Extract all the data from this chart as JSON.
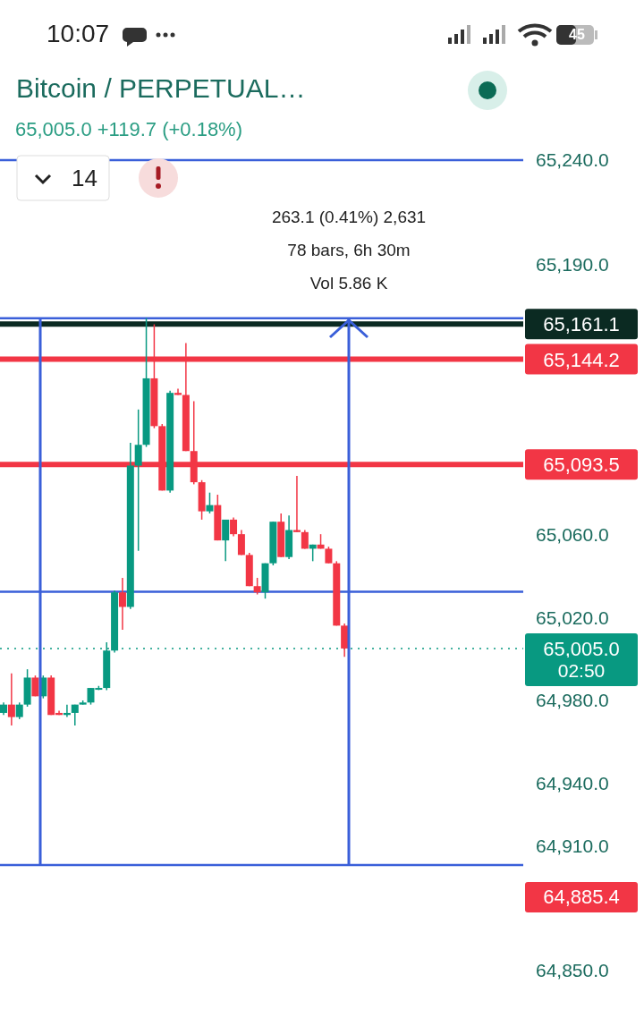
{
  "chart_data": {
    "type": "candlestick",
    "title": "Bitcoin / PERPETUAL…",
    "subtitle": "65,005.0 +119.7 (+0.18%)",
    "categories": [
      null,
      null,
      null,
      null,
      null,
      null,
      null,
      null,
      null,
      null,
      null,
      null,
      null,
      null,
      null,
      null,
      null,
      null,
      null,
      null,
      null,
      null,
      null,
      null,
      null,
      null,
      null,
      null,
      null,
      null,
      null,
      null,
      null,
      null,
      null,
      null,
      null,
      null,
      null,
      null,
      null,
      null,
      null,
      null,
      null,
      null,
      null,
      null,
      null,
      null,
      null,
      null,
      null,
      null,
      null,
      null,
      null,
      null,
      null,
      null,
      null,
      null,
      null,
      null,
      null,
      null
    ],
    "ohlc": [
      [
        64974,
        64979,
        64973,
        64978
      ],
      [
        64978,
        64993,
        64968,
        64972
      ],
      [
        64972,
        64979,
        64971,
        64978
      ],
      [
        64978,
        64995,
        64977,
        64991
      ],
      [
        64991,
        64992,
        64982,
        64982
      ],
      [
        64982,
        64992,
        64981,
        64991
      ],
      [
        64991,
        64992,
        64973,
        64973
      ],
      [
        64974,
        64975,
        64973,
        64973
      ],
      [
        64973,
        64978,
        64972,
        64974
      ],
      [
        64974,
        64978,
        64968,
        64978
      ],
      [
        64978,
        64980,
        64978,
        64979
      ],
      [
        64979,
        64986,
        64978,
        64986
      ],
      [
        64986,
        64987,
        64985,
        64986
      ],
      [
        64986,
        65008,
        64985,
        65004
      ],
      [
        65004,
        65033,
        65003,
        65032
      ],
      [
        65032,
        65039,
        65014,
        65025
      ],
      [
        65025,
        65104,
        65024,
        65093
      ],
      [
        65093,
        65120,
        65052,
        65103
      ],
      [
        65103,
        65164,
        65102,
        65135
      ],
      [
        65135,
        65161,
        65111,
        65112
      ],
      [
        65112,
        65113,
        65081,
        65081
      ],
      [
        65081,
        65129,
        65080,
        65128
      ],
      [
        65128,
        65130,
        65127,
        65127
      ],
      [
        65127,
        65152,
        65100,
        65100
      ],
      [
        65100,
        65124,
        65084,
        65085
      ],
      [
        65085,
        65086,
        65067,
        65071
      ],
      [
        65071,
        65080,
        65070,
        65074
      ],
      [
        65074,
        65079,
        65057,
        65057
      ],
      [
        65057,
        65067,
        65047,
        65067
      ],
      [
        65067,
        65068,
        65059,
        65060
      ],
      [
        65060,
        65062,
        65050,
        65050
      ],
      [
        65050,
        65051,
        65035,
        65035
      ],
      [
        65035,
        65039,
        65031,
        65032
      ],
      [
        65032,
        65046,
        65029,
        65046
      ],
      [
        65046,
        65066,
        65045,
        65066
      ],
      [
        65066,
        65070,
        65049,
        65049
      ],
      [
        65049,
        65069,
        65048,
        65062
      ],
      [
        65062,
        65088,
        65061,
        65061
      ],
      [
        65061,
        65062,
        65053,
        65053
      ],
      [
        65053,
        65055,
        65047,
        65055
      ],
      [
        65055,
        65060,
        65053,
        65053
      ],
      [
        65053,
        65054,
        65046,
        65046
      ],
      [
        65046,
        65047,
        65016,
        65016
      ],
      [
        65016,
        65017,
        65001,
        65005
      ],
      null,
      null,
      null,
      null,
      null,
      null,
      null,
      null,
      null,
      null,
      null,
      null,
      null,
      null,
      null,
      null,
      null,
      null,
      null,
      null,
      null,
      null
    ],
    "colors": [
      "#089981",
      "#f23645",
      "#089981",
      "#089981",
      "#f23645",
      "#089981",
      "#f23645",
      "#f23645",
      "#089981",
      "#089981",
      "#089981",
      "#089981",
      "#089981",
      "#089981",
      "#089981",
      "#f23645",
      "#089981",
      "#089981",
      "#089981",
      "#f23645",
      "#f23645",
      "#089981",
      "#f23645",
      "#f23645",
      "#f23645",
      "#f23645",
      "#089981",
      "#f23645",
      "#089981",
      "#f23645",
      "#f23645",
      "#f23645",
      "#f23645",
      "#089981",
      "#089981",
      "#f23645",
      "#089981",
      "#f23645",
      "#f23645",
      "#089981",
      "#f23645",
      "#f23645",
      "#f23645",
      "#f23645",
      null,
      null,
      null,
      null,
      null,
      null,
      null,
      null,
      null,
      null,
      null,
      null,
      null,
      null,
      null,
      null,
      null,
      null,
      null,
      null,
      null,
      null
    ],
    "ylim": [
      64850,
      65240
    ],
    "yticks": [
      {
        "value": 65240,
        "label": "65,240.0"
      },
      {
        "value": 65190,
        "label": "65,190.0"
      },
      {
        "value": 65060,
        "label": "65,060.0"
      },
      {
        "value": 65020,
        "label": "65,020.0"
      },
      {
        "value": 64980,
        "label": "64,980.0"
      },
      {
        "value": 64940,
        "label": "64,940.0"
      },
      {
        "value": 64910,
        "label": "64,910.0"
      },
      {
        "value": 64850,
        "label": "64,850.0"
      }
    ],
    "ref_lines": [
      {
        "axis": "y",
        "value": 65240,
        "color": "#3a5fd9"
      },
      {
        "axis": "y",
        "value": 65163.9,
        "color": "#3a5fd9"
      },
      {
        "axis": "y",
        "value": 65032.3,
        "color": "#3a5fd9"
      },
      {
        "axis": "y",
        "value": 64900.8,
        "color": "#3a5fd9"
      },
      {
        "axis": "y",
        "value": 65161.1,
        "label": "65,161.1",
        "color": "#0b2a22"
      },
      {
        "axis": "y",
        "value": 65144.2,
        "label": "65,144.2",
        "color": "#f23645"
      },
      {
        "axis": "y",
        "value": 65093.5,
        "label": "65,093.5",
        "color": "#f23645"
      },
      {
        "axis": "y",
        "value": 65005.0,
        "label": "65,005.0",
        "color": "#089981",
        "line_style": "dotted"
      }
    ],
    "annotations": [
      "10:07",
      "45",
      "14",
      "263.1 (0.41%) 2,631",
      "78 bars, 6h 30m",
      "Vol 5.86 K",
      "02:50",
      "64,885.4"
    ]
  }
}
